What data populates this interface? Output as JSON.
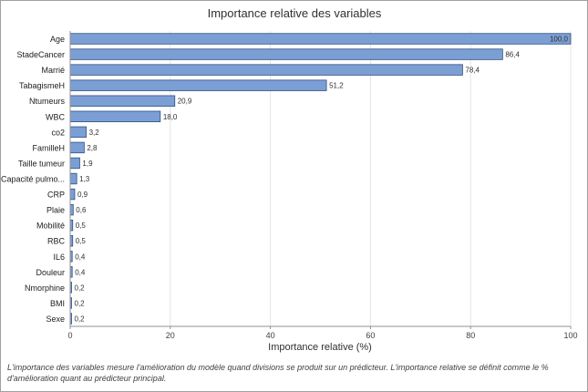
{
  "chart_data": {
    "type": "bar",
    "orientation": "horizontal",
    "title": "Importance relative des variables",
    "xlabel": "Importance relative (%)",
    "ylabel": "",
    "xlim": [
      0,
      100
    ],
    "xticks": [
      0,
      20,
      40,
      60,
      80,
      100
    ],
    "grid": true,
    "categories": [
      "Age",
      "StadeCancer",
      "Marrié",
      "TabagismeH",
      "Ntumeurs",
      "WBC",
      "co2",
      "FamilleH",
      "Taille tumeur",
      "Capacité pulmo...",
      "CRP",
      "Plaie",
      "Mobilité",
      "RBC",
      "IL6",
      "Douleur",
      "Nmorphine",
      "BMI",
      "Sexe"
    ],
    "values": [
      100.0,
      86.4,
      78.4,
      51.2,
      20.9,
      18.0,
      3.2,
      2.8,
      1.9,
      1.3,
      0.9,
      0.6,
      0.5,
      0.5,
      0.4,
      0.4,
      0.2,
      0.2,
      0.2
    ],
    "value_labels": [
      "100,0",
      "86,4",
      "78,4",
      "51,2",
      "20,9",
      "18,0",
      "3,2",
      "2,8",
      "1,9",
      "1,3",
      "0,9",
      "0,6",
      "0,5",
      "0,5",
      "0,4",
      "0,4",
      "0,2",
      "0,2",
      "0,2"
    ],
    "bar_color": "#7b9fd4",
    "bar_edge_color": "#2f4f7f"
  },
  "footnote": "L'importance des variables mesure l'amélioration du modèle quand divisions se produit sur un prédicteur. L'importance relative se définit comme le % d'amélioration quant au prédicteur principal."
}
